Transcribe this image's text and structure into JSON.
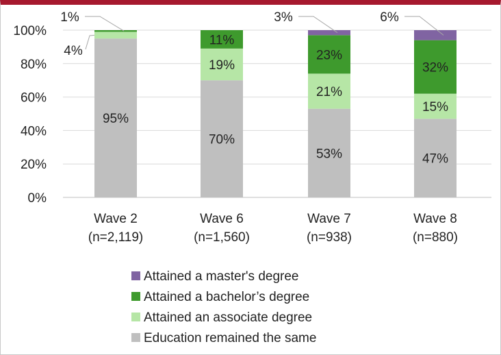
{
  "chart_data": {
    "type": "bar",
    "stacked": true,
    "title": "",
    "xlabel": "",
    "ylabel": "",
    "ylim": [
      0,
      100
    ],
    "yticks": [
      "0%",
      "20%",
      "40%",
      "60%",
      "80%",
      "100%"
    ],
    "grid": true,
    "legend_position": "bottom",
    "categories": [
      "Wave 2",
      "Wave 6",
      "Wave 7",
      "Wave 8"
    ],
    "category_sublabels": [
      "(n=2,119)",
      "(n=1,560)",
      "(n=938)",
      "(n=880)"
    ],
    "series": [
      {
        "name": "Education remained the same",
        "color": "#bfbfbf",
        "values": [
          95,
          70,
          53,
          47
        ],
        "labels": [
          "95%",
          "70%",
          "53%",
          "47%"
        ]
      },
      {
        "name": "Attained an associate degree",
        "color": "#b6e6a6",
        "values": [
          4,
          19,
          21,
          15
        ],
        "labels": [
          "4%",
          "19%",
          "21%",
          "15%"
        ]
      },
      {
        "name": "Attained a bachelor’s degree",
        "color": "#3e9a2d",
        "values": [
          1,
          11,
          23,
          32
        ],
        "labels": [
          "1%",
          "11%",
          "23%",
          "32%"
        ]
      },
      {
        "name": "Attained a master's degree",
        "color": "#8064a2",
        "values": [
          0,
          0,
          3,
          6
        ],
        "labels": [
          "",
          "",
          "3%",
          "6%"
        ]
      }
    ],
    "callout_labels": [
      {
        "category": 0,
        "series": 2,
        "text": "1%"
      },
      {
        "category": 0,
        "series": 1,
        "text": "4%"
      },
      {
        "category": 2,
        "series": 3,
        "text": "3%"
      },
      {
        "category": 3,
        "series": 3,
        "text": "6%"
      }
    ],
    "legend_order": [
      3,
      2,
      1,
      0
    ]
  }
}
